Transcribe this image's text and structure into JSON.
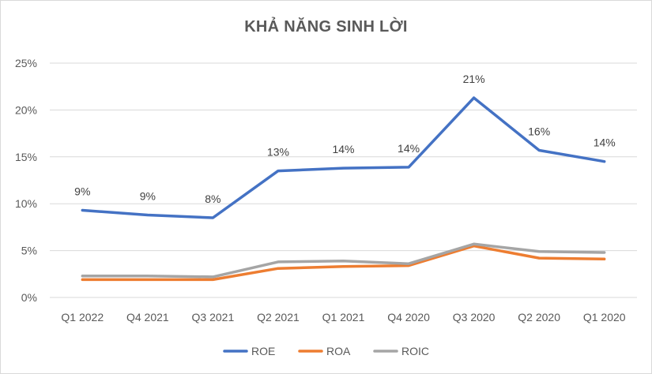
{
  "chart_data": {
    "type": "line",
    "title": "KHẢ NĂNG SINH LỜI",
    "categories": [
      "Q1 2022",
      "Q4 2021",
      "Q3 2021",
      "Q2 2021",
      "Q1 2021",
      "Q4 2020",
      "Q3 2020",
      "Q2 2020",
      "Q1 2020"
    ],
    "y_ticks": [
      "0%",
      "5%",
      "10%",
      "15%",
      "20%",
      "25%"
    ],
    "ylim": [
      0,
      0.25
    ],
    "grid": true,
    "legend_position": "bottom",
    "series": [
      {
        "name": "ROE",
        "color": "#4472C4",
        "values": [
          0.093,
          0.088,
          0.085,
          0.135,
          0.138,
          0.139,
          0.213,
          0.157,
          0.145
        ],
        "data_labels": [
          "9%",
          "9%",
          "8%",
          "13%",
          "14%",
          "14%",
          "21%",
          "16%",
          "14%"
        ]
      },
      {
        "name": "ROA",
        "color": "#ED7D31",
        "values": [
          0.019,
          0.019,
          0.019,
          0.031,
          0.033,
          0.034,
          0.055,
          0.042,
          0.041
        ],
        "data_labels": []
      },
      {
        "name": "ROIC",
        "color": "#A5A5A5",
        "values": [
          0.023,
          0.023,
          0.022,
          0.038,
          0.039,
          0.036,
          0.057,
          0.049,
          0.048
        ],
        "data_labels": []
      }
    ]
  }
}
